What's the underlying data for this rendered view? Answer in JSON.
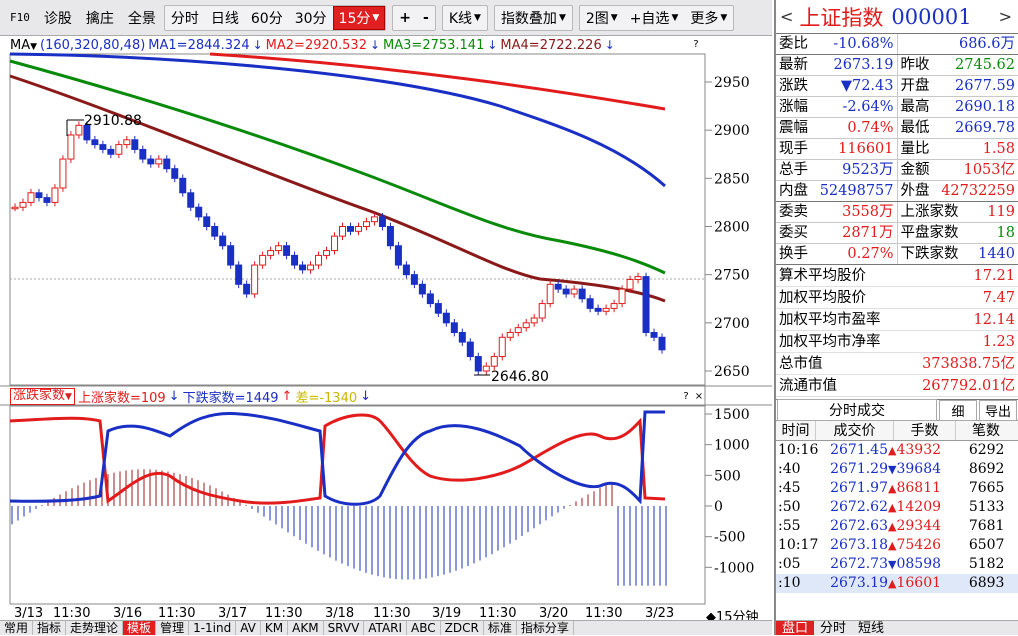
{
  "toolbar": {
    "items": [
      "F10",
      "诊股",
      "擒庄",
      "全景",
      "分时",
      "日线",
      "60分",
      "30分",
      "15分",
      "+",
      "-",
      "K线",
      "指数叠加",
      "2图",
      "+自选",
      "更多"
    ],
    "active": "15分"
  },
  "main_chart": {
    "ma_label": "MA",
    "ma_params": "(160,320,80,48)",
    "ma1": "MA1=2844.324",
    "ma2": "MA2=2920.532",
    "ma3": "MA3=2753.141",
    "ma4": "MA4=2722.226",
    "high_marker": "2910.88",
    "low_marker": "2646.80",
    "y_ticks": [
      "2950",
      "2900",
      "2850",
      "2800",
      "2750",
      "2700",
      "2650"
    ]
  },
  "indicator": {
    "name": "涨跌家数",
    "up": "上涨家数=109",
    "down": "下跌家数=1449",
    "diff": "差=-1340",
    "y_ticks": [
      "1500",
      "1000",
      "500",
      "0",
      "-500",
      "-1000"
    ]
  },
  "x_axis": {
    "labels": [
      "3/13",
      "11:30",
      "3/16",
      "11:30",
      "3/17",
      "11:30",
      "3/18",
      "11:30",
      "3/19",
      "11:30",
      "3/20",
      "11:30",
      "3/23"
    ],
    "period": "◆15分钟"
  },
  "bottom_tabs": [
    "常用",
    "指标",
    "走势理论",
    "模板",
    "管理",
    "1-1ind",
    "AV",
    "KM",
    "AKM",
    "SRVV",
    "ATARI",
    "ABC",
    "ZDCR",
    "标准",
    "指标分享"
  ],
  "bottom_tab_active": "模板",
  "quote": {
    "name": "上证指数",
    "code": "000001",
    "wei_bi_label": "委比",
    "wei_bi": "-10.68%",
    "wei_bi_amount": "686.6万",
    "latest_label": "最新",
    "latest": "2673.19",
    "prev_close_label": "昨收",
    "prev_close": "2745.62",
    "change_label": "涨跌",
    "change": "▼72.43",
    "open_label": "开盘",
    "open": "2677.59",
    "change_pct_label": "涨幅",
    "change_pct": "-2.64%",
    "high_label": "最高",
    "high": "2690.18",
    "amplitude_label": "震幅",
    "amplitude": "0.74%",
    "low_label": "最低",
    "low": "2669.78",
    "cur_vol_label": "现手",
    "cur_vol": "116601",
    "vol_ratio_label": "量比",
    "vol_ratio": "1.58",
    "total_vol_label": "总手",
    "total_vol": "9523万",
    "amount_label": "金额",
    "amount": "1053亿",
    "inner_label": "内盘",
    "inner": "52498757",
    "outer_label": "外盘",
    "outer": "42732259",
    "ask_label": "委卖",
    "ask": "3558万",
    "up_count_label": "上涨家数",
    "up_count": "119",
    "bid_label": "委买",
    "bid": "2871万",
    "flat_count_label": "平盘家数",
    "flat_count": "18",
    "turnover_label": "换手",
    "turnover": "0.27%",
    "down_count_label": "下跌家数",
    "down_count": "1440",
    "avg_price_label": "算术平均股价",
    "avg_price": "17.21",
    "wavg_price_label": "加权平均股价",
    "wavg_price": "7.47",
    "wpe_label": "加权平均市盈率",
    "wpe": "12.14",
    "wpb_label": "加权平均市净率",
    "wpb": "1.23",
    "mcap_label": "总市值",
    "mcap": "373838.75亿",
    "float_mcap_label": "流通市值",
    "float_mcap": "267792.01亿"
  },
  "ticks": {
    "title": "分时成交",
    "detail": "细",
    "export": "导出",
    "columns": [
      "时间",
      "成交价",
      "手数",
      "笔数"
    ],
    "rows": [
      {
        "time": "10:16",
        "price": "2671.45",
        "dir": "▲",
        "vol": "43932",
        "cnt": "6292"
      },
      {
        "time": ":40",
        "price": "2671.29",
        "dir": "▼",
        "vol": "39684",
        "cnt": "8692"
      },
      {
        "time": ":45",
        "price": "2671.97",
        "dir": "▲",
        "vol": "86811",
        "cnt": "7665"
      },
      {
        "time": ":50",
        "price": "2672.62",
        "dir": "▲",
        "vol": "14209",
        "cnt": "5133"
      },
      {
        "time": ":55",
        "price": "2672.63",
        "dir": "▲",
        "vol": "29344",
        "cnt": "7681"
      },
      {
        "time": "10:17",
        "price": "2673.18",
        "dir": "▲",
        "vol": "75426",
        "cnt": "6507"
      },
      {
        "time": ":05",
        "price": "2672.73",
        "dir": "▼",
        "vol": "08598",
        "cnt": "5182"
      },
      {
        "time": ":10",
        "price": "2673.19",
        "dir": "▲",
        "vol": "16601",
        "cnt": "6893"
      }
    ]
  },
  "rp_bottom": [
    "盘口",
    "分时",
    "短线"
  ],
  "colors": {
    "up": "#e21c1c",
    "down": "#1a2fc4",
    "ma1": "#1a2fc4",
    "ma2": "#e21c1c",
    "ma3": "#0a8a0a",
    "ma4": "#8a1a1a"
  }
}
